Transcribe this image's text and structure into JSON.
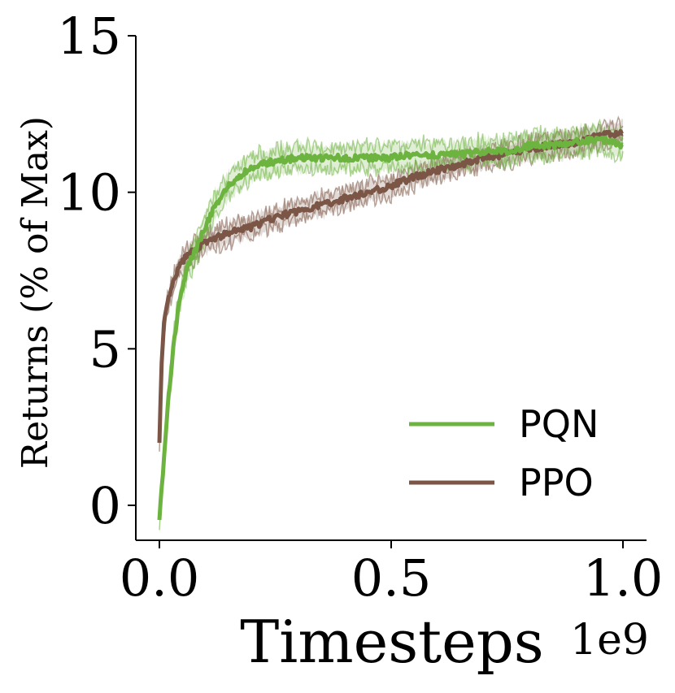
{
  "chart_data": {
    "type": "line",
    "xlabel": "Timesteps",
    "ylabel": "Returns (% of Max)",
    "x_offset_text": "1e9",
    "xlim": [
      -0.05,
      1.05
    ],
    "ylim": [
      -1.1,
      15
    ],
    "xticks": [
      0.0,
      0.5,
      1.0
    ],
    "xtick_labels": [
      "0.0",
      "0.5",
      "1.0"
    ],
    "yticks": [
      0,
      5,
      10,
      15
    ],
    "ytick_labels": [
      "0",
      "5",
      "10",
      "15"
    ],
    "legend_position": "lower-right",
    "grid": false,
    "series": [
      {
        "name": "PQN",
        "color": "#6db33f",
        "x": [
          0.0,
          0.01,
          0.02,
          0.03,
          0.04,
          0.05,
          0.06,
          0.08,
          0.1,
          0.12,
          0.15,
          0.18,
          0.2,
          0.25,
          0.3,
          0.35,
          0.4,
          0.45,
          0.5,
          0.55,
          0.6,
          0.65,
          0.7,
          0.75,
          0.8,
          0.85,
          0.9,
          0.95,
          1.0
        ],
        "values": [
          -0.4,
          1.5,
          3.5,
          5.0,
          6.2,
          7.0,
          7.6,
          8.2,
          8.9,
          9.6,
          10.2,
          10.6,
          10.8,
          11.0,
          11.1,
          11.1,
          11.1,
          11.1,
          11.1,
          11.2,
          11.2,
          11.2,
          11.3,
          11.3,
          11.5,
          11.5,
          11.6,
          11.7,
          11.5
        ],
        "band_width": 0.45
      },
      {
        "name": "PPO",
        "color": "#7b5546",
        "x": [
          0.0,
          0.005,
          0.01,
          0.02,
          0.03,
          0.04,
          0.05,
          0.07,
          0.1,
          0.15,
          0.2,
          0.25,
          0.3,
          0.35,
          0.4,
          0.45,
          0.5,
          0.55,
          0.6,
          0.65,
          0.7,
          0.75,
          0.8,
          0.85,
          0.9,
          0.95,
          1.0
        ],
        "values": [
          2.1,
          4.5,
          5.8,
          6.6,
          7.1,
          7.5,
          7.8,
          8.1,
          8.4,
          8.7,
          8.9,
          9.2,
          9.4,
          9.6,
          9.8,
          10.0,
          10.2,
          10.5,
          10.7,
          10.9,
          11.1,
          11.2,
          11.4,
          11.5,
          11.6,
          11.8,
          11.9
        ],
        "band_width": 0.35
      }
    ]
  }
}
